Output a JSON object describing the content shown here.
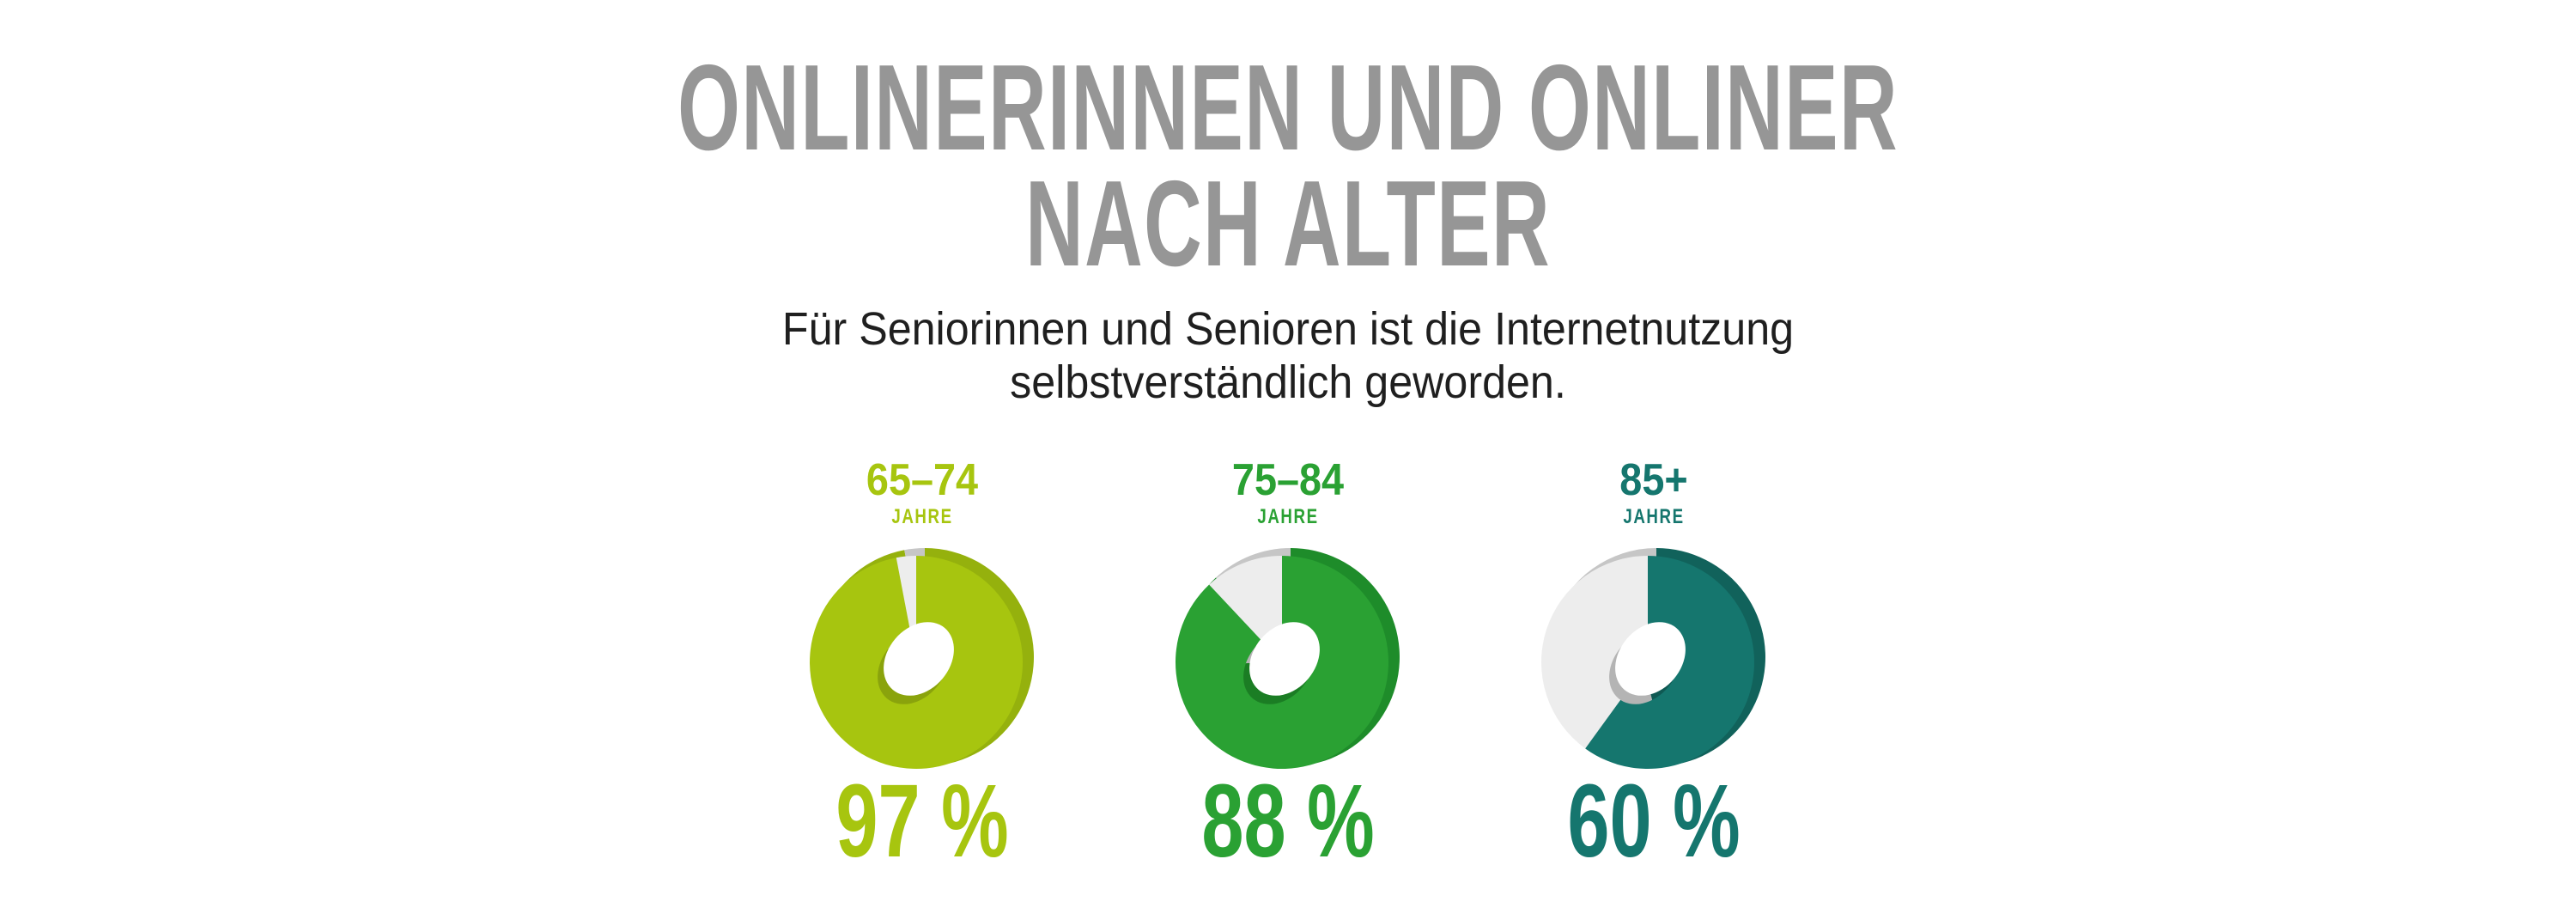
{
  "page": {
    "background": "#ffffff",
    "title_line1": "ONLINERINNEN UND ONLINER",
    "title_line2": "NACH ALTER",
    "title_color": "#969696",
    "subtitle_line1": "Für Seniorinnen und Senioren ist die Internetnutzung",
    "subtitle_line2": "selbstverständlich geworden.",
    "subtitle_color": "#1f1f1f"
  },
  "chart_data": {
    "type": "pie",
    "subtype": "3d-donut",
    "title": "Onlinerinnen und Onliner nach Alter",
    "unit": "%",
    "legend_position": "none",
    "categories": [
      "65–74 Jahre",
      "75–84 Jahre",
      "85+ Jahre"
    ],
    "values": [
      97,
      88,
      60
    ],
    "charts": [
      {
        "age_label": "65–74",
        "age_unit": "JAHRE",
        "value": 97,
        "remainder": 3,
        "value_label": "97 %",
        "color": "#a7c50f",
        "color_dark": "#95b10d",
        "color_wall": "#8aa30c"
      },
      {
        "age_label": "75–84",
        "age_unit": "JAHRE",
        "value": 88,
        "remainder": 12,
        "value_label": "88 %",
        "color": "#2aa133",
        "color_dark": "#1e8c2a",
        "color_wall": "#1b7d24"
      },
      {
        "age_label": "85+",
        "age_unit": "JAHRE",
        "value": 60,
        "remainder": 40,
        "value_label": "60 %",
        "color": "#15766e",
        "color_dark": "#11625b",
        "color_wall": "#0f5953"
      }
    ],
    "remainder_colors": {
      "front": "#ededed",
      "side": "#c6c6c6",
      "wall": "#b4b4b4"
    }
  }
}
